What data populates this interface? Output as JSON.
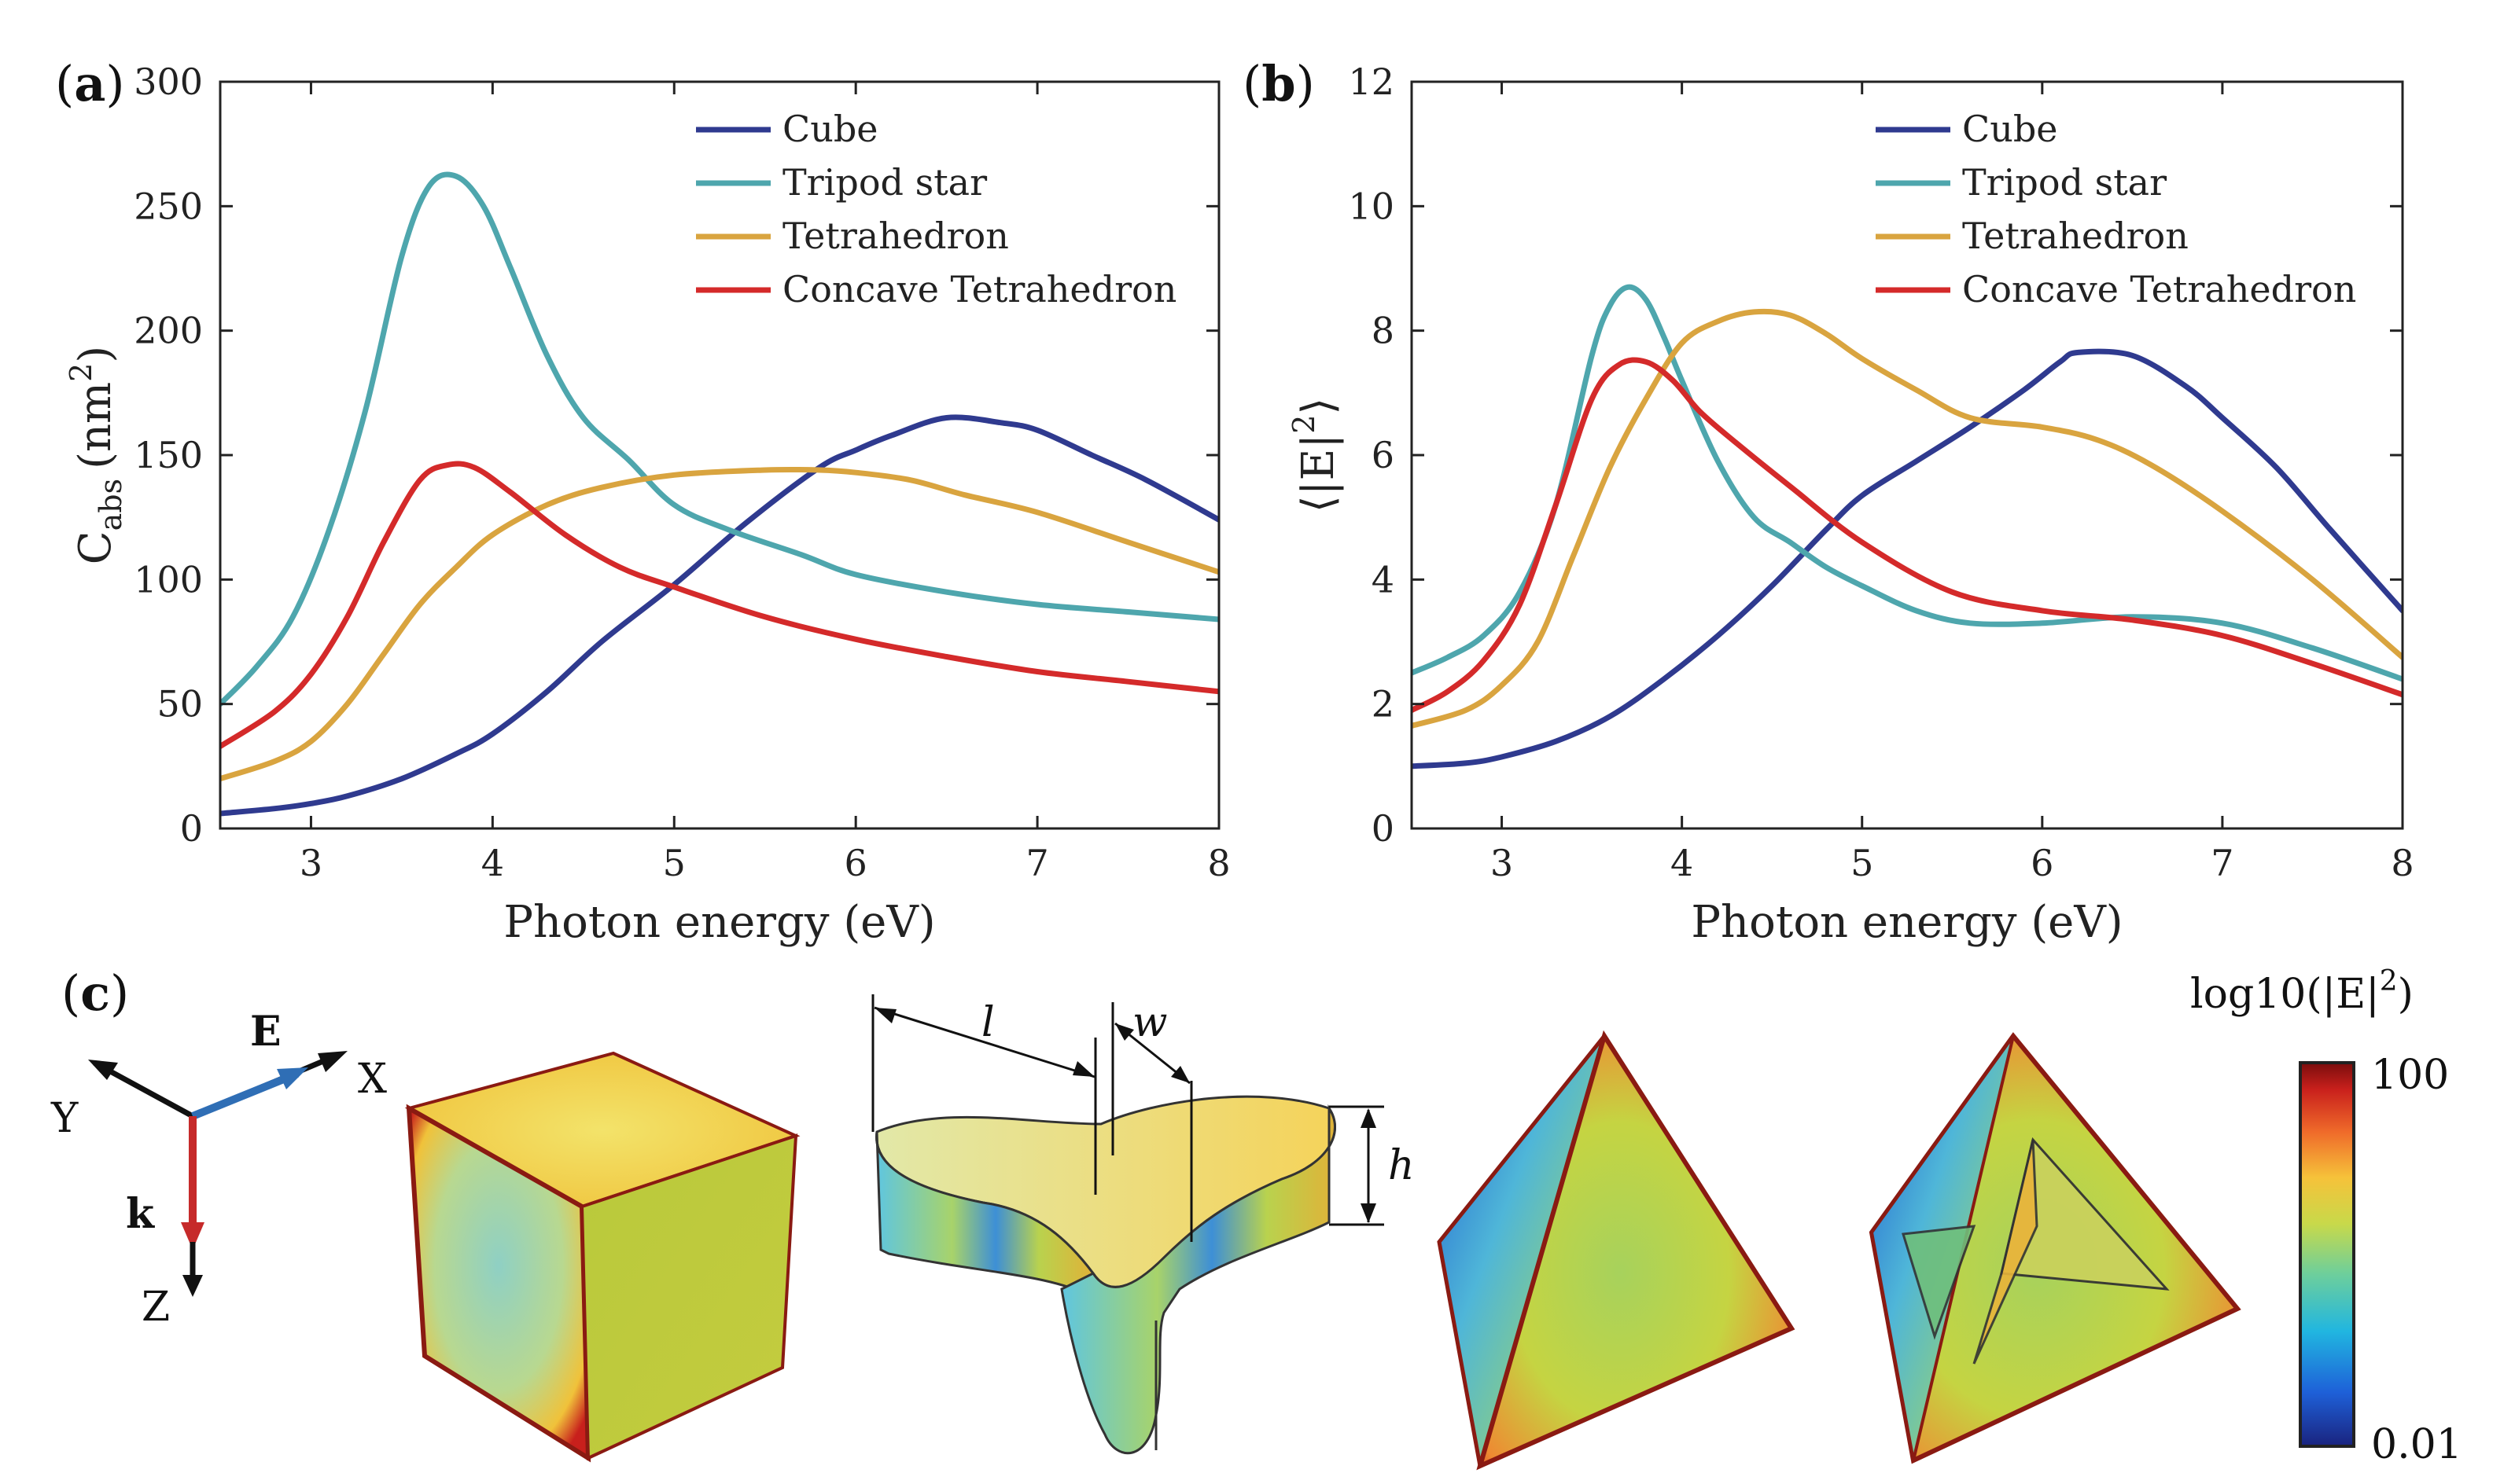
{
  "chart_data": [
    {
      "type": "line",
      "panel": "(a)",
      "panel_letter": "a",
      "xlabel": "Photon energy (eV)",
      "ylabel_main": "C",
      "ylabel_sub": "abs",
      "ylabel_unit": "(nm",
      "ylabel_sup": "2",
      "ylabel_close": ")",
      "xlim": [
        2.5,
        8
      ],
      "ylim": [
        0,
        300
      ],
      "xticks": [
        "3",
        "4",
        "5",
        "6",
        "7",
        "8"
      ],
      "yticks": [
        "0",
        "50",
        "100",
        "150",
        "200",
        "250",
        "300"
      ],
      "legend_position": "top-right",
      "series": [
        {
          "name": "Cube",
          "color": "#2f3a8f",
          "x": [
            2.5,
            2.8,
            3.0,
            3.2,
            3.5,
            3.8,
            4.0,
            4.3,
            4.6,
            5.0,
            5.4,
            5.8,
            6.0,
            6.2,
            6.5,
            6.8,
            7.0,
            7.3,
            7.6,
            8.0
          ],
          "y": [
            6,
            8,
            10,
            13,
            20,
            30,
            38,
            55,
            75,
            98,
            123,
            145,
            152,
            158,
            165,
            163,
            160,
            150,
            140,
            124
          ]
        },
        {
          "name": "Tripod star",
          "color": "#4ea6ad",
          "x": [
            2.5,
            2.7,
            2.9,
            3.1,
            3.3,
            3.5,
            3.65,
            3.8,
            3.95,
            4.1,
            4.3,
            4.5,
            4.75,
            5.0,
            5.3,
            5.7,
            6.0,
            6.5,
            7.0,
            7.5,
            8.0
          ],
          "y": [
            50,
            65,
            85,
            120,
            168,
            230,
            258,
            262,
            250,
            225,
            190,
            165,
            148,
            130,
            120,
            110,
            102,
            95,
            90,
            87,
            84
          ]
        },
        {
          "name": "Tetrahedron",
          "color": "#d9a43f",
          "x": [
            2.5,
            2.8,
            3.0,
            3.2,
            3.4,
            3.6,
            3.8,
            4.0,
            4.3,
            4.6,
            5.0,
            5.5,
            5.8,
            6.0,
            6.3,
            6.6,
            7.0,
            7.5,
            8.0
          ],
          "y": [
            20,
            27,
            35,
            50,
            70,
            90,
            105,
            118,
            130,
            137,
            142,
            144,
            144,
            143,
            140,
            134,
            127,
            115,
            103
          ]
        },
        {
          "name": "Concave Tetrahedron",
          "color": "#d42a2a",
          "x": [
            2.5,
            2.8,
            3.0,
            3.2,
            3.4,
            3.6,
            3.75,
            3.9,
            4.1,
            4.4,
            4.7,
            5.0,
            5.5,
            6.0,
            6.5,
            7.0,
            7.5,
            8.0
          ],
          "y": [
            33,
            47,
            62,
            85,
            115,
            140,
            146,
            145,
            135,
            118,
            105,
            97,
            85,
            76,
            69,
            63,
            59,
            55
          ]
        }
      ]
    },
    {
      "type": "line",
      "panel": "(b)",
      "panel_letter": "b",
      "xlabel": "Photon energy (eV)",
      "ylabel_main": "⟨|E|",
      "ylabel_sup": "2",
      "ylabel_close": "⟩",
      "xlim": [
        2.5,
        8
      ],
      "ylim": [
        0,
        12
      ],
      "xticks": [
        "3",
        "4",
        "5",
        "6",
        "7",
        "8"
      ],
      "yticks": [
        "0",
        "2",
        "4",
        "6",
        "8",
        "10",
        "12"
      ],
      "legend_position": "top-right",
      "series": [
        {
          "name": "Cube",
          "color": "#2f3a8f",
          "x": [
            2.5,
            2.8,
            3.0,
            3.3,
            3.6,
            3.9,
            4.2,
            4.5,
            4.8,
            5.0,
            5.3,
            5.6,
            5.9,
            6.1,
            6.2,
            6.5,
            6.8,
            7.0,
            7.3,
            7.6,
            8.0
          ],
          "y": [
            1.0,
            1.05,
            1.15,
            1.4,
            1.8,
            2.4,
            3.1,
            3.9,
            4.8,
            5.35,
            5.9,
            6.45,
            7.05,
            7.5,
            7.65,
            7.6,
            7.1,
            6.6,
            5.8,
            4.8,
            3.5
          ]
        },
        {
          "name": "Tripod star",
          "color": "#4ea6ad",
          "x": [
            2.5,
            2.7,
            2.9,
            3.1,
            3.3,
            3.5,
            3.6,
            3.7,
            3.8,
            3.9,
            4.0,
            4.2,
            4.4,
            4.6,
            4.8,
            5.0,
            5.3,
            5.6,
            6.0,
            6.5,
            7.0,
            7.5,
            8.0
          ],
          "y": [
            2.5,
            2.75,
            3.1,
            3.8,
            5.2,
            7.6,
            8.4,
            8.7,
            8.5,
            7.9,
            7.2,
            5.9,
            5.0,
            4.6,
            4.2,
            3.9,
            3.5,
            3.3,
            3.3,
            3.4,
            3.3,
            2.9,
            2.4
          ]
        },
        {
          "name": "Tetrahedron",
          "color": "#d9a43f",
          "x": [
            2.5,
            2.8,
            3.0,
            3.2,
            3.4,
            3.6,
            3.8,
            4.0,
            4.2,
            4.4,
            4.6,
            4.8,
            5.0,
            5.3,
            5.6,
            6.0,
            6.3,
            6.6,
            7.0,
            7.5,
            8.0
          ],
          "y": [
            1.65,
            1.9,
            2.3,
            3.0,
            4.4,
            5.8,
            6.9,
            7.8,
            8.15,
            8.3,
            8.25,
            7.95,
            7.55,
            7.05,
            6.6,
            6.45,
            6.25,
            5.85,
            5.1,
            4.0,
            2.75
          ]
        },
        {
          "name": "Concave Tetrahedron",
          "color": "#d42a2a",
          "x": [
            2.5,
            2.7,
            2.9,
            3.1,
            3.3,
            3.5,
            3.65,
            3.8,
            3.95,
            4.1,
            4.3,
            4.6,
            5.0,
            5.5,
            6.0,
            6.5,
            7.0,
            7.5,
            8.0
          ],
          "y": [
            1.9,
            2.2,
            2.7,
            3.6,
            5.2,
            6.9,
            7.45,
            7.5,
            7.2,
            6.7,
            6.2,
            5.5,
            4.6,
            3.8,
            3.5,
            3.35,
            3.1,
            2.65,
            2.15
          ]
        }
      ]
    }
  ],
  "panel_c": {
    "label": "(c)",
    "label_letter": "c",
    "axes": {
      "x": "X",
      "y": "Y",
      "z": "Z",
      "e": "E",
      "k": "k",
      "e_color": "#2f6eb5",
      "k_color": "#c62a2a"
    },
    "dims": {
      "l": "l",
      "w": "w",
      "h": "h"
    },
    "colorbar": {
      "title": "log10(|E|",
      "title_sup": "2",
      "title_close": ")",
      "max_label": "100",
      "min_label": "0.01",
      "colors": [
        "#1a237e",
        "#1e60d8",
        "#21b6e0",
        "#6ecf9b",
        "#c8d94a",
        "#f6c23a",
        "#ef6a2a",
        "#c9201c",
        "#7a0d0d"
      ]
    },
    "shapes": [
      "cube",
      "tripod-star",
      "tetrahedron",
      "concave-tetrahedron"
    ]
  }
}
